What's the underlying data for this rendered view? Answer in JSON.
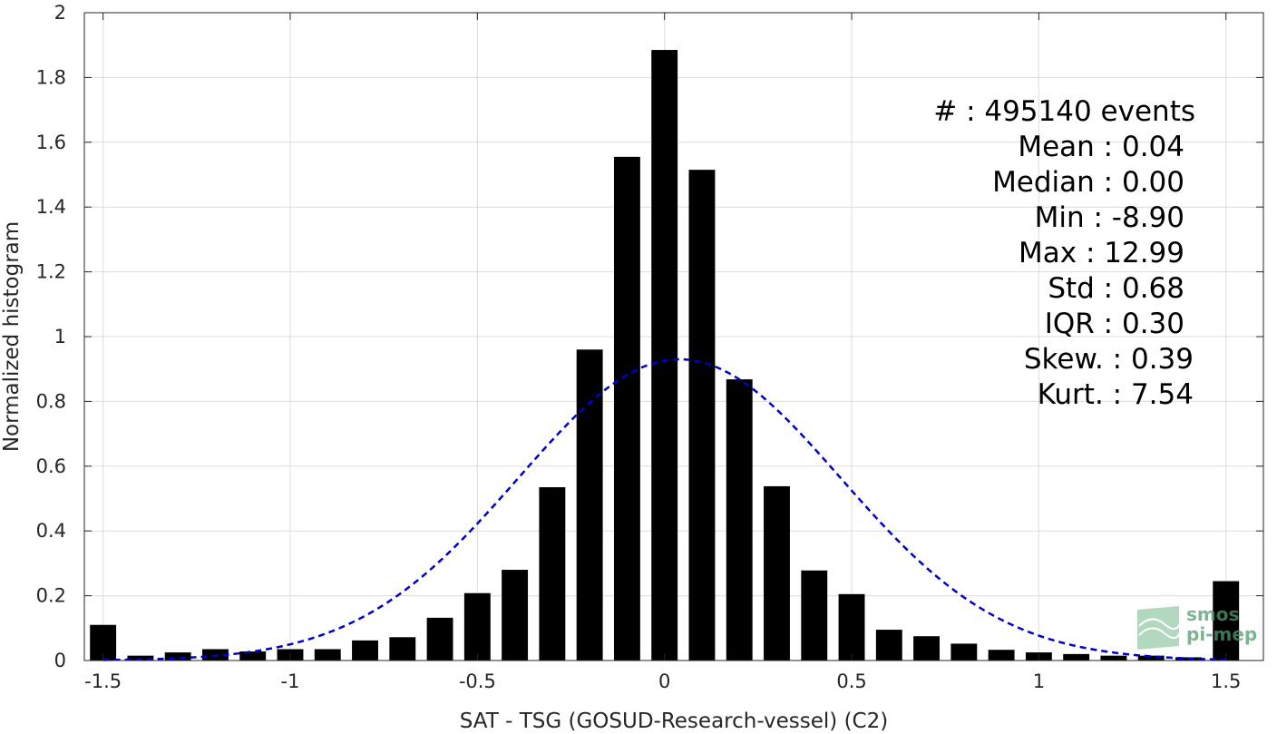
{
  "chart_data": {
    "type": "bar",
    "title": "",
    "xlabel": "SAT - TSG (GOSUD-Research-vessel) (C2)",
    "ylabel": "Normalized histogram",
    "xlim": [
      -1.55,
      1.6
    ],
    "ylim": [
      0,
      2
    ],
    "grid": true,
    "x_ticks": [
      -1.5,
      -1,
      -0.5,
      0,
      0.5,
      1,
      1.5
    ],
    "x_tick_labels": [
      "-1.5",
      "-1",
      "-0.5",
      "0",
      "0.5",
      "1",
      "1.5"
    ],
    "y_ticks": [
      0,
      0.2,
      0.4,
      0.6,
      0.8,
      1,
      1.2,
      1.4,
      1.6,
      1.8,
      2
    ],
    "y_tick_labels": [
      "0",
      "0.2",
      "0.4",
      "0.6",
      "0.8",
      "1",
      "1.2",
      "1.4",
      "1.6",
      "1.8",
      "2"
    ],
    "bar_width": 0.07,
    "bar_color": "#000000",
    "x": [
      -1.5,
      -1.4,
      -1.3,
      -1.2,
      -1.1,
      -1.0,
      -0.9,
      -0.8,
      -0.7,
      -0.6,
      -0.5,
      -0.4,
      -0.3,
      -0.2,
      -0.1,
      0.0,
      0.1,
      0.2,
      0.3,
      0.4,
      0.5,
      0.6,
      0.7,
      0.8,
      0.9,
      1.0,
      1.1,
      1.2,
      1.3,
      1.4,
      1.5
    ],
    "values": [
      0.11,
      0.015,
      0.025,
      0.035,
      0.028,
      0.035,
      0.035,
      0.062,
      0.072,
      0.132,
      0.208,
      0.28,
      0.535,
      0.96,
      1.555,
      1.885,
      1.515,
      0.868,
      0.538,
      0.278,
      0.205,
      0.095,
      0.075,
      0.052,
      0.033,
      0.025,
      0.02,
      0.015,
      0.015,
      0.01,
      0.245
    ],
    "fit": {
      "type": "gaussian",
      "mean": 0.04,
      "std": 0.43,
      "peak": 0.93,
      "color": "#0000cc",
      "style": "dashed"
    },
    "stats": [
      {
        "text": "#  : 495140 events",
        "anchor_right": 1318
      },
      {
        "text": "Mean : 0.04",
        "anchor_right": 1306
      },
      {
        "text": "Median : 0.00",
        "anchor_right": 1306
      },
      {
        "text": "Min : -8.90",
        "anchor_right": 1306
      },
      {
        "text": "Max : 12.99",
        "anchor_right": 1306
      },
      {
        "text": "Std : 0.68",
        "anchor_right": 1306
      },
      {
        "text": "IQR : 0.30",
        "anchor_right": 1306
      },
      {
        "text": "Skew. : 0.39",
        "anchor_right": 1316
      },
      {
        "text": "Kurt. : 7.54",
        "anchor_right": 1316
      }
    ]
  },
  "logo": {
    "line1": "smos",
    "line2": "pi-mep"
  }
}
